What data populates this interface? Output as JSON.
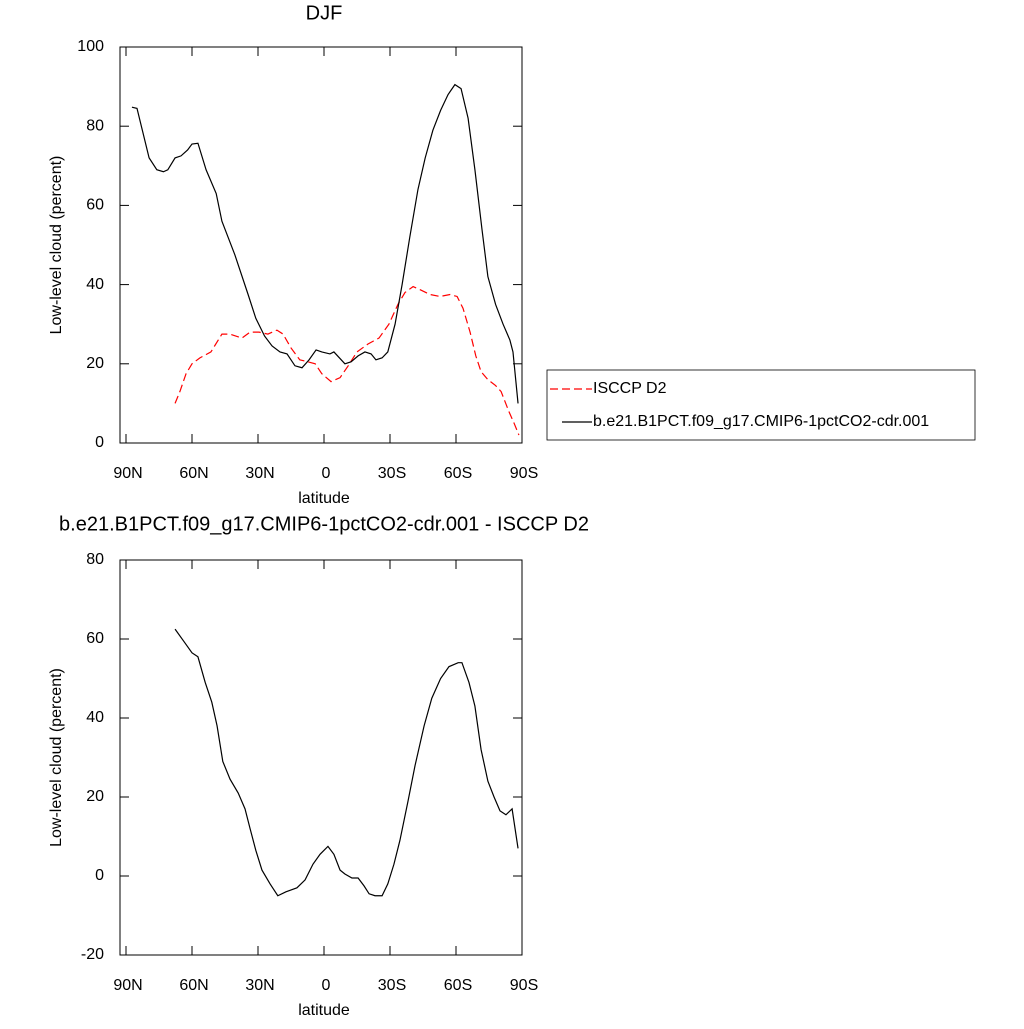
{
  "chart_data": [
    {
      "type": "line",
      "title": "DJF",
      "xlabel": "latitude",
      "ylabel": "Low-level cloud (percent)",
      "xlim": [
        90,
        -90
      ],
      "xticks": [
        {
          "value": 90,
          "label": "90N"
        },
        {
          "value": 60,
          "label": "60N"
        },
        {
          "value": 30,
          "label": "30N"
        },
        0,
        {
          "value": -30,
          "label": "30S"
        },
        {
          "value": -60,
          "label": "60S"
        },
        {
          "value": -90,
          "label": "90S"
        }
      ],
      "ylim": [
        0,
        100
      ],
      "yticks": [
        0,
        20,
        40,
        60,
        80,
        100
      ],
      "legend": "right",
      "series": [
        {
          "name": "ISCCP D2",
          "color": "#ff0000",
          "dash": true,
          "x": [
            67.7,
            65.5,
            62.7,
            60,
            56.4,
            51.4,
            46.4,
            42.7,
            37.3,
            33.6,
            29.5,
            25.5,
            21.4,
            18.6,
            15,
            11,
            7.3,
            4,
            1,
            -3.2,
            -7.3,
            -11,
            -15,
            -20,
            -25,
            -29.5,
            -33.6,
            -36.8,
            -40.5,
            -44.5,
            -48.2,
            -52.7,
            -57.3,
            -60.5,
            -63.2,
            -66.4,
            -69,
            -71.4,
            -74.5,
            -78,
            -80.5,
            -84,
            -86.4,
            -88.6
          ],
          "values": [
            10,
            13,
            17.5,
            20,
            21.5,
            23,
            27.5,
            27.5,
            26.5,
            28,
            28,
            27.5,
            28.5,
            27.5,
            24,
            21,
            20.5,
            20,
            17.5,
            15.5,
            16.5,
            19.5,
            23,
            25,
            26.5,
            30,
            35,
            38,
            39.5,
            38.5,
            37.5,
            37,
            37.5,
            37,
            34,
            28,
            22,
            18,
            16,
            14.5,
            13,
            8,
            5,
            2
          ]
        },
        {
          "name": "b.e21.B1PCT.f09_g17.CMIP6-1pctCO2-cdr.001",
          "color": "#000000",
          "dash": false,
          "x": [
            87.3,
            85,
            79.5,
            76,
            73,
            71,
            67.7,
            65,
            62,
            60,
            57.3,
            53.6,
            49,
            46.4,
            40.5,
            34.5,
            31,
            27,
            23.6,
            20,
            16.8,
            13.2,
            10,
            6.8,
            3.6,
            1,
            -2.7,
            -4.5,
            -9.5,
            -12.3,
            -15.5,
            -18.6,
            -21.4,
            -23.6,
            -26.4,
            -29,
            -32.3,
            -35.5,
            -39,
            -42.7,
            -46,
            -49.5,
            -53,
            -56.4,
            -59.5,
            -62.3,
            -65.5,
            -68.6,
            -71.8,
            -74.5,
            -78,
            -81.4,
            -84.5,
            -85.9,
            -88.2
          ],
          "values": [
            84.8,
            84.5,
            72,
            69,
            68.5,
            69,
            72,
            72.5,
            74,
            75.5,
            75.7,
            69,
            63,
            56,
            47.5,
            37.5,
            31.5,
            27,
            24.5,
            23,
            22.5,
            19.5,
            19,
            21,
            23.5,
            23,
            22.5,
            23,
            20,
            20.5,
            22,
            23,
            22.5,
            21,
            21.5,
            23,
            30,
            40,
            52,
            64,
            72,
            79,
            84,
            88,
            90.5,
            89.5,
            82,
            69,
            54,
            42,
            35,
            30,
            26,
            23,
            10
          ]
        }
      ]
    },
    {
      "type": "line",
      "title": "b.e21.B1PCT.f09_g17.CMIP6-1pctCO2-cdr.001 - ISCCP D2",
      "xlabel": "latitude",
      "ylabel": "Low-level cloud (percent)",
      "xlim": [
        90,
        -90
      ],
      "xticks": [
        {
          "value": 90,
          "label": "90N"
        },
        {
          "value": 60,
          "label": "60N"
        },
        {
          "value": 30,
          "label": "30N"
        },
        0,
        {
          "value": -30,
          "label": "30S"
        },
        {
          "value": -60,
          "label": "60S"
        },
        {
          "value": -90,
          "label": "90S"
        }
      ],
      "ylim": [
        -20,
        80
      ],
      "yticks": [
        -20,
        0,
        20,
        40,
        60,
        80
      ],
      "series": [
        {
          "color": "#000000",
          "dash": false,
          "x": [
            67.7,
            63.2,
            60,
            57.3,
            54,
            51,
            48.6,
            46,
            42.7,
            39,
            35.9,
            33.6,
            31,
            28.2,
            24.5,
            21,
            17.3,
            12.3,
            8.6,
            5,
            1.8,
            -1.8,
            -4.5,
            -7.3,
            -9.5,
            -12.7,
            -15.5,
            -18.2,
            -20.5,
            -23.2,
            -26.4,
            -29,
            -31.8,
            -34.5,
            -38.2,
            -41.4,
            -45.5,
            -49,
            -53,
            -56.8,
            -61,
            -62.7,
            -65.9,
            -68.6,
            -71.4,
            -74.5,
            -77.3,
            -80,
            -82.7,
            -85.5,
            -88.2
          ],
          "values": [
            62.5,
            59,
            56.5,
            55.5,
            49,
            44,
            38,
            29,
            24.5,
            21,
            17,
            12,
            6.5,
            1.5,
            -2,
            -5,
            -4,
            -3,
            -1,
            3,
            5.5,
            7.5,
            5.5,
            1.5,
            0.5,
            -0.5,
            -0.5,
            -2.5,
            -4.5,
            -5,
            -5,
            -2,
            3,
            9,
            19,
            28,
            38,
            45,
            50,
            53,
            54,
            54,
            49,
            43,
            32,
            24,
            20,
            16.5,
            15.5,
            17,
            7
          ]
        }
      ]
    }
  ]
}
